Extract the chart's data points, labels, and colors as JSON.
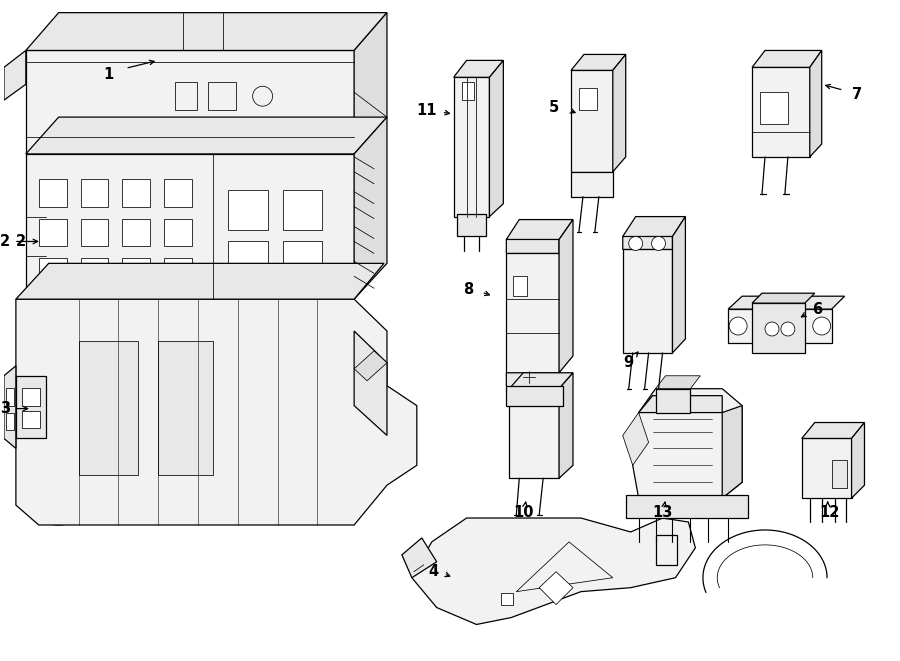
{
  "background_color": "#ffffff",
  "line_color": "#000000",
  "face_light": "#f2f2f2",
  "face_mid": "#e8e8e8",
  "face_dark": "#dedede",
  "lw_main": 0.9,
  "lw_thin": 0.55,
  "figsize": [
    9.0,
    6.61
  ],
  "dpi": 100,
  "label_positions": {
    "1": [
      1.05,
      5.92,
      1.62,
      6.05,
      2.15,
      6.18
    ],
    "2": [
      0.28,
      4.2,
      0.45,
      4.2,
      0.62,
      4.2
    ],
    "3": [
      0.28,
      2.52,
      0.5,
      2.52,
      0.72,
      2.52
    ],
    "4": [
      4.4,
      0.88,
      4.62,
      0.82,
      4.84,
      0.76
    ],
    "5": [
      5.68,
      5.58,
      5.88,
      5.55,
      6.05,
      5.52
    ],
    "6": [
      7.92,
      3.55,
      8.05,
      3.42,
      8.18,
      3.28
    ],
    "7": [
      8.48,
      5.68,
      8.32,
      5.78,
      8.15,
      5.88
    ],
    "8": [
      4.72,
      3.72,
      4.9,
      3.65,
      5.08,
      3.58
    ],
    "9": [
      6.3,
      3.0,
      6.38,
      3.12,
      6.46,
      3.24
    ],
    "10": [
      5.28,
      1.55,
      5.32,
      1.7,
      5.36,
      1.85
    ],
    "11": [
      4.38,
      5.55,
      4.57,
      5.52,
      4.76,
      5.49
    ],
    "12": [
      8.22,
      1.55,
      8.28,
      1.7,
      8.34,
      1.85
    ],
    "13": [
      6.55,
      1.55,
      6.6,
      1.68,
      6.65,
      1.81
    ]
  }
}
